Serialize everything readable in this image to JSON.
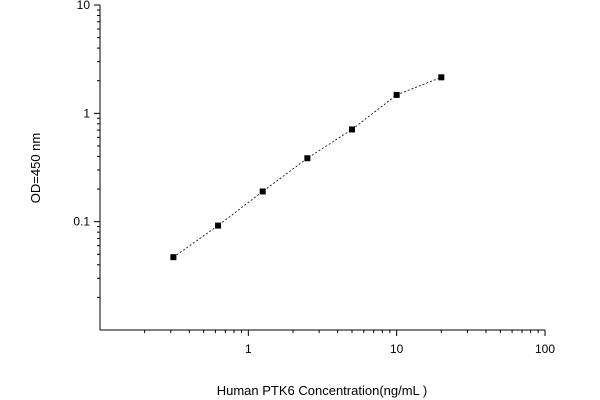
{
  "chart_data": {
    "type": "scatter",
    "xlabel": "Human PTK6 Concentration(ng/mL )",
    "ylabel": "OD=450 nm",
    "xscale": "log",
    "yscale": "log",
    "xlim": [
      0.1,
      100
    ],
    "ylim": [
      0.01,
      10
    ],
    "x_ticks": [
      1,
      10,
      100
    ],
    "x_tick_labels": [
      "1",
      "10",
      "100"
    ],
    "y_ticks": [
      0.1,
      1,
      10
    ],
    "y_tick_labels": [
      "0.1",
      "1",
      "10"
    ],
    "grid": false,
    "marker": "square",
    "line_style": "dashed",
    "series": [
      {
        "x": [
          0.3125,
          0.625,
          1.25,
          2.5,
          5,
          10,
          20
        ],
        "y": [
          0.047,
          0.092,
          0.19,
          0.385,
          0.71,
          1.48,
          2.15
        ]
      }
    ]
  }
}
